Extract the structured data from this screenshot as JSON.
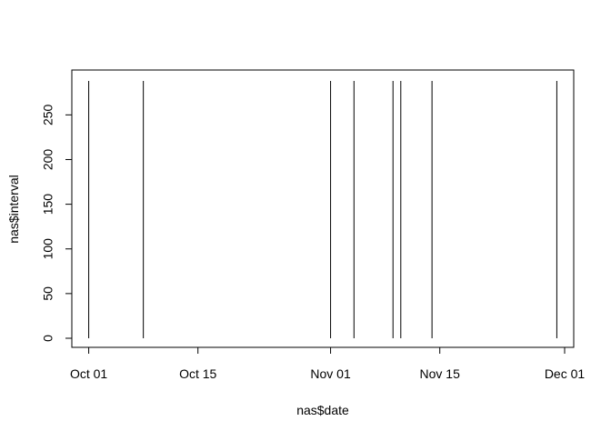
{
  "chart_data": {
    "type": "line",
    "title": "",
    "xlabel": "nas$date",
    "ylabel": "nas$interval",
    "xlim": [
      "2012-09-30",
      "2012-12-01"
    ],
    "ylim": [
      0,
      288
    ],
    "x_ticks": [
      "2012-10-01",
      "2012-10-15",
      "2012-11-01",
      "2012-11-15",
      "2012-12-01"
    ],
    "x_tick_labels": [
      "Oct 01",
      "Oct 15",
      "Nov 01",
      "Nov 15",
      "Dec 01"
    ],
    "y_ticks": [
      0,
      50,
      100,
      150,
      200,
      250
    ],
    "y_tick_labels": [
      "0",
      "50",
      "100",
      "150",
      "200",
      "250"
    ],
    "grid": false,
    "legend": "none",
    "series": [
      {
        "style": "vertical-lines",
        "color": "#000000",
        "points": [
          {
            "x": "2012-10-01",
            "y_min": 0,
            "y_max": 288
          },
          {
            "x": "2012-10-08",
            "y_min": 0,
            "y_max": 288
          },
          {
            "x": "2012-11-01",
            "y_min": 0,
            "y_max": 288
          },
          {
            "x": "2012-11-04",
            "y_min": 0,
            "y_max": 288
          },
          {
            "x": "2012-11-09",
            "y_min": 0,
            "y_max": 288
          },
          {
            "x": "2012-11-10",
            "y_min": 0,
            "y_max": 288
          },
          {
            "x": "2012-11-14",
            "y_min": 0,
            "y_max": 288
          },
          {
            "x": "2012-11-30",
            "y_min": 0,
            "y_max": 288
          }
        ]
      }
    ]
  }
}
